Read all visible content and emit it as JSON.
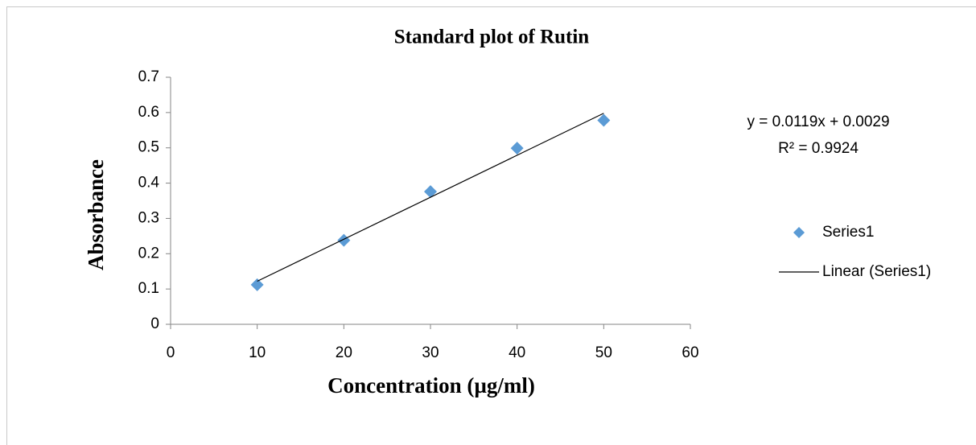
{
  "chart_data": {
    "type": "scatter",
    "title": "Standard plot of Rutin",
    "x_label": "Concentration  (µg/ml)",
    "y_label": "Absorbance",
    "xlim": [
      0,
      60
    ],
    "xticks": [
      0,
      10,
      20,
      30,
      40,
      50,
      60
    ],
    "ylim": [
      0,
      0.7
    ],
    "yticks": [
      0,
      0.1,
      0.2,
      0.3,
      0.4,
      0.5,
      0.6,
      0.7
    ],
    "series": [
      {
        "name": "Series1",
        "color": "#5b9bd5",
        "marker": "diamond",
        "x": [
          10,
          20,
          30,
          40,
          50
        ],
        "values": [
          0.112,
          0.238,
          0.376,
          0.499,
          0.578
        ]
      },
      {
        "name": "Linear (Series1)",
        "color": "#000000",
        "marker": "line",
        "x": [
          10,
          50
        ],
        "values": [
          0.122,
          0.598
        ]
      }
    ],
    "annotations": [
      "y = 0.0119x + 0.0029",
      "R² = 0.9924"
    ],
    "legend": "right"
  }
}
